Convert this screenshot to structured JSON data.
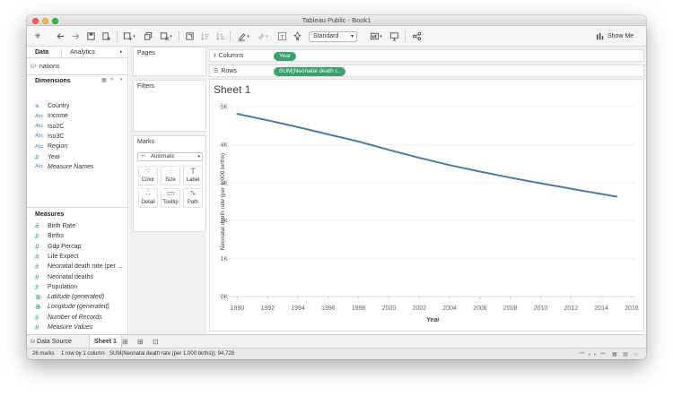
{
  "window": {
    "title": "Tableau Public - Book1"
  },
  "toolbar": {
    "format_select": "Standard",
    "show_me_label": "Show Me",
    "icons": [
      "tableau-logo-icon",
      "undo-icon",
      "redo-icon",
      "save-icon",
      "add-datasource-icon",
      "new-worksheet-icon",
      "duplicate-icon",
      "clear-icon",
      "swap-icon",
      "sort-ascending-icon",
      "sort-descending-icon",
      "highlight-icon",
      "group-icon",
      "label-icon",
      "pin-icon",
      "fit-icon",
      "presentation-icon",
      "share-icon"
    ]
  },
  "left_pane": {
    "tabs": [
      "Data",
      "Analytics"
    ],
    "data_source": "nations",
    "dimensions_label": "Dimensions",
    "dimensions": [
      {
        "label": "Country",
        "icon": "globe-icon",
        "italic": false
      },
      {
        "label": "Income",
        "icon": "abc-icon",
        "italic": false
      },
      {
        "label": "Iso2C",
        "icon": "abc-icon",
        "italic": false
      },
      {
        "label": "Iso3C",
        "icon": "abc-icon",
        "italic": false
      },
      {
        "label": "Region",
        "icon": "abc-icon",
        "italic": false
      },
      {
        "label": "Year",
        "icon": "number-icon",
        "italic": false
      },
      {
        "label": "Measure Names",
        "icon": "abc-icon",
        "italic": true
      }
    ],
    "measures_label": "Measures",
    "measures": [
      {
        "label": "Birth Rate",
        "icon": "number-icon",
        "italic": false
      },
      {
        "label": "Births",
        "icon": "number-icon",
        "italic": false
      },
      {
        "label": "Gdp Percap",
        "icon": "number-icon",
        "italic": false
      },
      {
        "label": "Life Expect",
        "icon": "number-icon",
        "italic": false
      },
      {
        "label": "Neonatal death rate (per ...",
        "icon": "number-icon",
        "italic": false
      },
      {
        "label": "Neonatal deaths",
        "icon": "number-icon",
        "italic": false
      },
      {
        "label": "Population",
        "icon": "number-icon",
        "italic": false
      },
      {
        "label": "Latitude (generated)",
        "icon": "globe-icon",
        "italic": true
      },
      {
        "label": "Longitude (generated)",
        "icon": "globe-icon",
        "italic": true
      },
      {
        "label": "Number of Records",
        "icon": "number-icon",
        "italic": true
      },
      {
        "label": "Measure Values",
        "icon": "number-icon",
        "italic": true
      }
    ]
  },
  "cards": {
    "pages": "Pages",
    "filters": "Filters",
    "marks": "Marks",
    "marks_type": "Automatic",
    "mark_buttons": [
      {
        "label": "Color",
        "glyph": "⁘"
      },
      {
        "label": "Size",
        "glyph": "◌"
      },
      {
        "label": "Label",
        "glyph": "T"
      },
      {
        "label": "Detail",
        "glyph": "∴"
      },
      {
        "label": "Tooltip",
        "glyph": "▭"
      },
      {
        "label": "Path",
        "glyph": "∿"
      }
    ]
  },
  "shelves": {
    "columns_label": "Columns",
    "columns_pill": "Year",
    "rows_label": "Rows",
    "rows_pill": "SUM(Neonatal death r.."
  },
  "sheet": {
    "title": "Sheet 1"
  },
  "chart_data": {
    "type": "line",
    "title": "Sheet 1",
    "xlabel": "Year",
    "ylabel": "Neonatal death rate (per 1,000 births)",
    "x_ticks": [
      "1990",
      "1992",
      "1994",
      "1996",
      "1998",
      "2000",
      "2002",
      "2004",
      "2006",
      "2008",
      "2010",
      "2012",
      "2014",
      "2016"
    ],
    "y_ticks": [
      "0K",
      "1K",
      "2K",
      "3K",
      "4K",
      "5K"
    ],
    "xlim": [
      1989.5,
      2016.3
    ],
    "ylim": [
      0,
      5000
    ],
    "grid": true,
    "line_color": "#4e79a7",
    "series": [
      {
        "x": [
          1990,
          1992,
          1994,
          1996,
          1998,
          2000,
          2002,
          2004,
          2006,
          2008,
          2010,
          2012,
          2014,
          2015
        ],
        "values": [
          4810,
          4640,
          4460,
          4270,
          4080,
          3860,
          3650,
          3460,
          3290,
          3130,
          2980,
          2840,
          2700,
          2630
        ]
      }
    ]
  },
  "bottom": {
    "data_source_tab": "Data Source",
    "sheet_tab": "Sheet 1"
  },
  "status": {
    "marks": "26 marks",
    "dims": "1 row by 1 column",
    "sum": "SUM(Neonatal death rate (per 1,000 births)): 94,728"
  }
}
